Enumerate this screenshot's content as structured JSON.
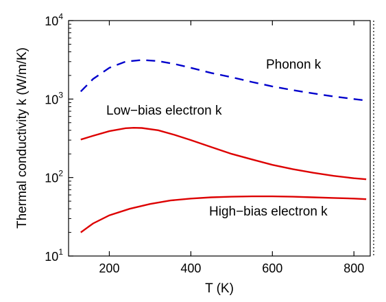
{
  "chart_data": {
    "type": "line",
    "title": "",
    "xlabel": "T (K)",
    "ylabel": "Thermal conductivity k (W/m/K)",
    "xlim": [
      100,
      840
    ],
    "ylim": [
      10,
      10000
    ],
    "y_scale": "log",
    "grid": false,
    "legend": "none",
    "x_ticks": [
      200,
      400,
      600,
      800
    ],
    "x_tick_labels": [
      "200",
      "400",
      "600",
      "800"
    ],
    "y_ticks": [
      10,
      100,
      1000,
      10000
    ],
    "y_tick_base": "10",
    "y_tick_exponents": [
      "1",
      "2",
      "3",
      "4"
    ],
    "series": [
      {
        "color": "#0000cc",
        "style": "dashed",
        "x": [
          130,
          160,
          200,
          240,
          280,
          320,
          360,
          400,
          450,
          500,
          550,
          600,
          650,
          700,
          750,
          800,
          830
        ],
        "y": [
          1250,
          1800,
          2500,
          3000,
          3150,
          3050,
          2800,
          2500,
          2150,
          1900,
          1650,
          1450,
          1300,
          1180,
          1080,
          1000,
          960
        ]
      },
      {
        "color": "#dd0000",
        "style": "solid",
        "x": [
          130,
          160,
          200,
          240,
          260,
          280,
          320,
          360,
          400,
          450,
          500,
          550,
          600,
          650,
          700,
          750,
          800,
          830
        ],
        "y": [
          305,
          340,
          390,
          425,
          430,
          428,
          400,
          350,
          300,
          245,
          200,
          170,
          145,
          128,
          115,
          105,
          98,
          95
        ]
      },
      {
        "color": "#dd0000",
        "style": "solid",
        "x": [
          130,
          160,
          200,
          250,
          300,
          350,
          400,
          450,
          500,
          550,
          600,
          650,
          700,
          750,
          800,
          830
        ],
        "y": [
          20,
          26,
          33,
          40,
          46,
          51,
          54,
          56,
          57,
          57.5,
          57.5,
          57,
          56,
          55,
          54,
          53
        ]
      }
    ],
    "annotations": [
      "Phonon k",
      "Low−bias electron k",
      "High−bias electron k"
    ]
  }
}
